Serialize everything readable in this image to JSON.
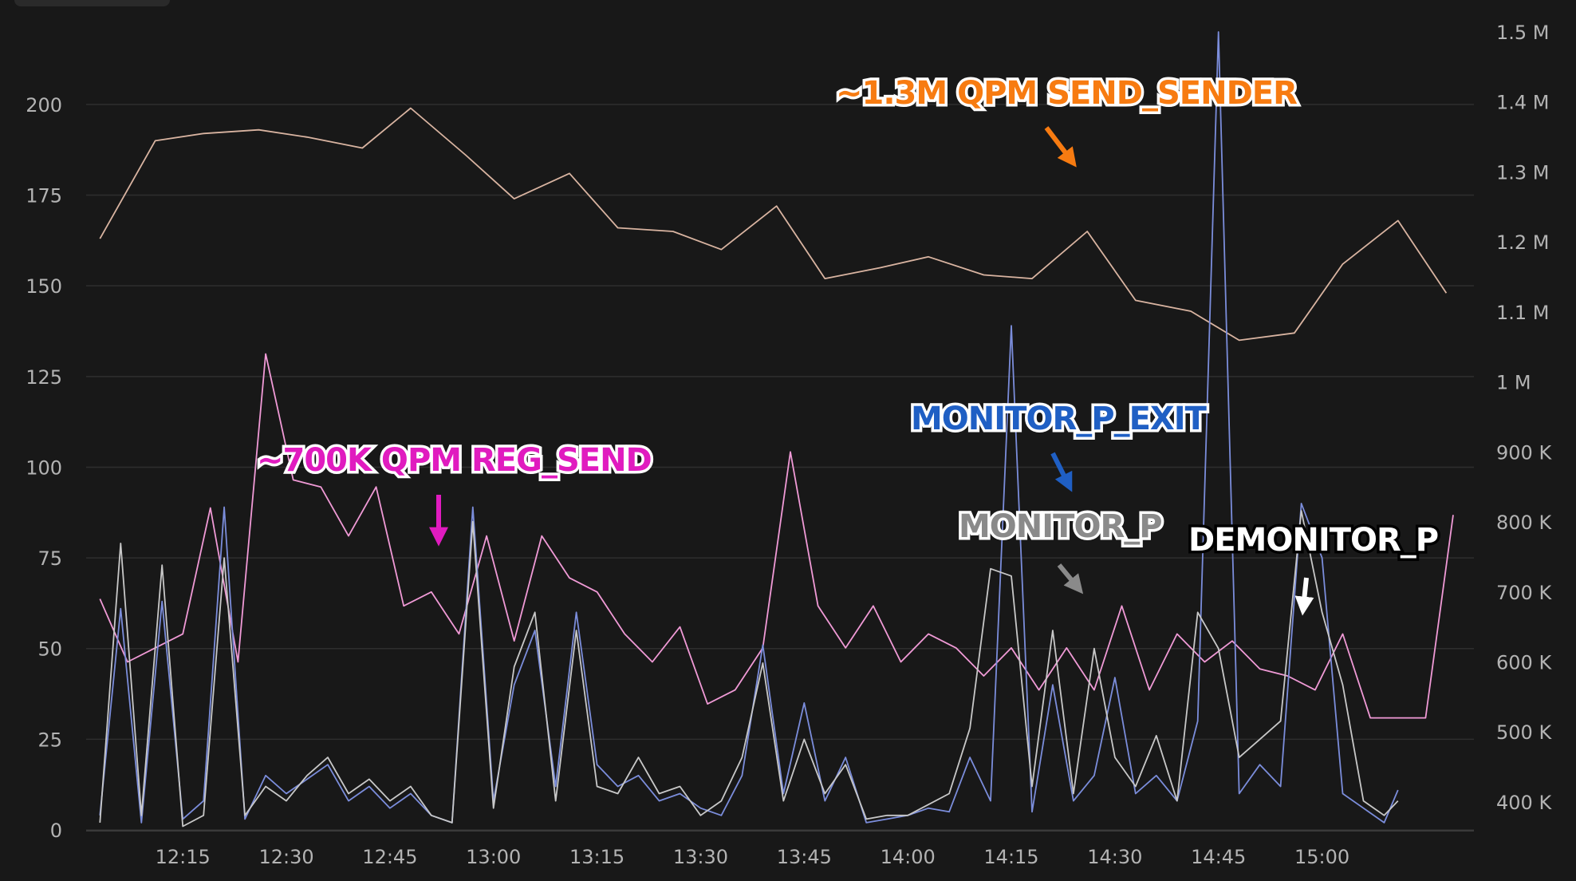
{
  "chart_data": {
    "type": "line",
    "y_left": {
      "ticks": [
        "0",
        "25",
        "50",
        "75",
        "100",
        "125",
        "150",
        "175",
        "200"
      ],
      "ylim": [
        0,
        220
      ]
    },
    "y_right": {
      "ticks": [
        "400 K",
        "500 K",
        "600 K",
        "700 K",
        "800 K",
        "900 K",
        "1 M",
        "1.1 M",
        "1.2 M",
        "1.3 M",
        "1.4 M",
        "1.5 M"
      ],
      "ylim": [
        360000,
        1500000
      ]
    },
    "x_ticks": [
      "12:15",
      "12:30",
      "12:45",
      "13:00",
      "13:15",
      "13:30",
      "13:45",
      "14:00",
      "14:15",
      "14:30",
      "14:45",
      "15:00"
    ],
    "x_tick_minutes": [
      735,
      750,
      765,
      780,
      795,
      810,
      825,
      840,
      855,
      870,
      885,
      900
    ],
    "xlim": [
      721,
      922
    ],
    "grid": true,
    "series": [
      {
        "name": "SEND_SENDER",
        "color": "#d9b4a1",
        "axis": "left",
        "x": [
          723,
          731,
          738,
          746,
          753,
          761,
          768,
          776,
          783,
          791,
          798,
          806,
          813,
          821,
          828,
          836,
          843,
          851,
          858,
          866,
          873,
          881,
          888,
          896,
          903,
          911,
          918
        ],
        "y": [
          163,
          190,
          192,
          193,
          191,
          188,
          199,
          186,
          174,
          181,
          166,
          165,
          160,
          172,
          152,
          155,
          158,
          153,
          152,
          165,
          146,
          143,
          135,
          137,
          156,
          168,
          148
        ]
      },
      {
        "name": "REG_SEND",
        "color": "#f09ad6",
        "axis": "right",
        "x": [
          723,
          727,
          731,
          735,
          739,
          743,
          747,
          751,
          755,
          759,
          763,
          767,
          771,
          775,
          779,
          783,
          787,
          791,
          795,
          799,
          803,
          807,
          811,
          815,
          819,
          823,
          827,
          831,
          835,
          839,
          843,
          847,
          851,
          855,
          859,
          863,
          867,
          871,
          875,
          879,
          883,
          887,
          891,
          895,
          899,
          903,
          907,
          911,
          915,
          919
        ],
        "y": [
          690000,
          600000,
          620000,
          640000,
          820000,
          600000,
          1040000,
          860000,
          850000,
          780000,
          850000,
          680000,
          700000,
          640000,
          780000,
          630000,
          780000,
          720000,
          700000,
          640000,
          600000,
          650000,
          540000,
          560000,
          620000,
          900000,
          680000,
          620000,
          680000,
          600000,
          640000,
          620000,
          580000,
          620000,
          560000,
          620000,
          560000,
          680000,
          560000,
          640000,
          600000,
          630000,
          590000,
          580000,
          560000,
          640000,
          520000,
          520000,
          520000,
          810000
        ]
      },
      {
        "name": "MONITOR_P_EXIT",
        "color": "#7b8ddb",
        "axis": "left",
        "x": [
          723,
          726,
          729,
          732,
          735,
          738,
          741,
          744,
          747,
          750,
          753,
          756,
          759,
          762,
          765,
          768,
          771,
          774,
          777,
          780,
          783,
          786,
          789,
          792,
          795,
          798,
          801,
          804,
          807,
          810,
          813,
          816,
          819,
          822,
          825,
          828,
          831,
          834,
          837,
          840,
          843,
          846,
          849,
          852,
          855,
          858,
          861,
          864,
          867,
          870,
          873,
          876,
          879,
          882,
          885,
          888,
          891,
          894,
          897,
          900,
          903,
          906,
          909,
          911
        ],
        "y": [
          4,
          61,
          2,
          63,
          3,
          8,
          89,
          3,
          15,
          10,
          14,
          18,
          8,
          12,
          6,
          10,
          4,
          2,
          89,
          8,
          40,
          55,
          12,
          60,
          18,
          12,
          15,
          8,
          10,
          6,
          4,
          15,
          51,
          10,
          35,
          8,
          20,
          2,
          3,
          4,
          6,
          5,
          20,
          8,
          139,
          5,
          40,
          8,
          15,
          42,
          10,
          15,
          8,
          30,
          220,
          10,
          18,
          12,
          90,
          75,
          10,
          6,
          2,
          11
        ]
      },
      {
        "name": "MONITOR_P",
        "color": "#c8c8c8",
        "axis": "left",
        "x": [
          723,
          726,
          729,
          732,
          735,
          738,
          741,
          744,
          747,
          750,
          753,
          756,
          759,
          762,
          765,
          768,
          771,
          774,
          777,
          780,
          783,
          786,
          789,
          792,
          795,
          798,
          801,
          804,
          807,
          810,
          813,
          816,
          819,
          822,
          825,
          828,
          831,
          834,
          837,
          840,
          843,
          846,
          849,
          852,
          855,
          858,
          861,
          864,
          867,
          870,
          873,
          876,
          879,
          882,
          885,
          888,
          891,
          894,
          897,
          900,
          903,
          906,
          909,
          911
        ],
        "y": [
          2,
          79,
          4,
          73,
          1,
          4,
          75,
          4,
          12,
          8,
          15,
          20,
          10,
          14,
          8,
          12,
          4,
          2,
          85,
          6,
          45,
          60,
          8,
          55,
          12,
          10,
          20,
          10,
          12,
          4,
          8,
          20,
          46,
          8,
          25,
          10,
          18,
          3,
          4,
          4,
          7,
          10,
          28,
          72,
          70,
          12,
          55,
          10,
          50,
          20,
          12,
          26,
          8,
          60,
          50,
          20,
          25,
          30,
          88,
          60,
          40,
          8,
          4,
          8
        ]
      }
    ],
    "annotations": [
      {
        "text": "~1.3M QPM SEND_SENDER",
        "color": "#f77b11",
        "series": "SEND_SENDER"
      },
      {
        "text": "~700K QPM REG_SEND",
        "color": "#e01bbf",
        "series": "REG_SEND"
      },
      {
        "text": "MONITOR_P_EXIT",
        "color": "#1f5fc4",
        "series": "MONITOR_P_EXIT"
      },
      {
        "text": "MONITOR_P",
        "color": "#8a8a8a",
        "series": "MONITOR_P"
      },
      {
        "text": "DEMONITOR_P",
        "color": "#ffffff",
        "series": "DEMONITOR_P"
      }
    ]
  }
}
